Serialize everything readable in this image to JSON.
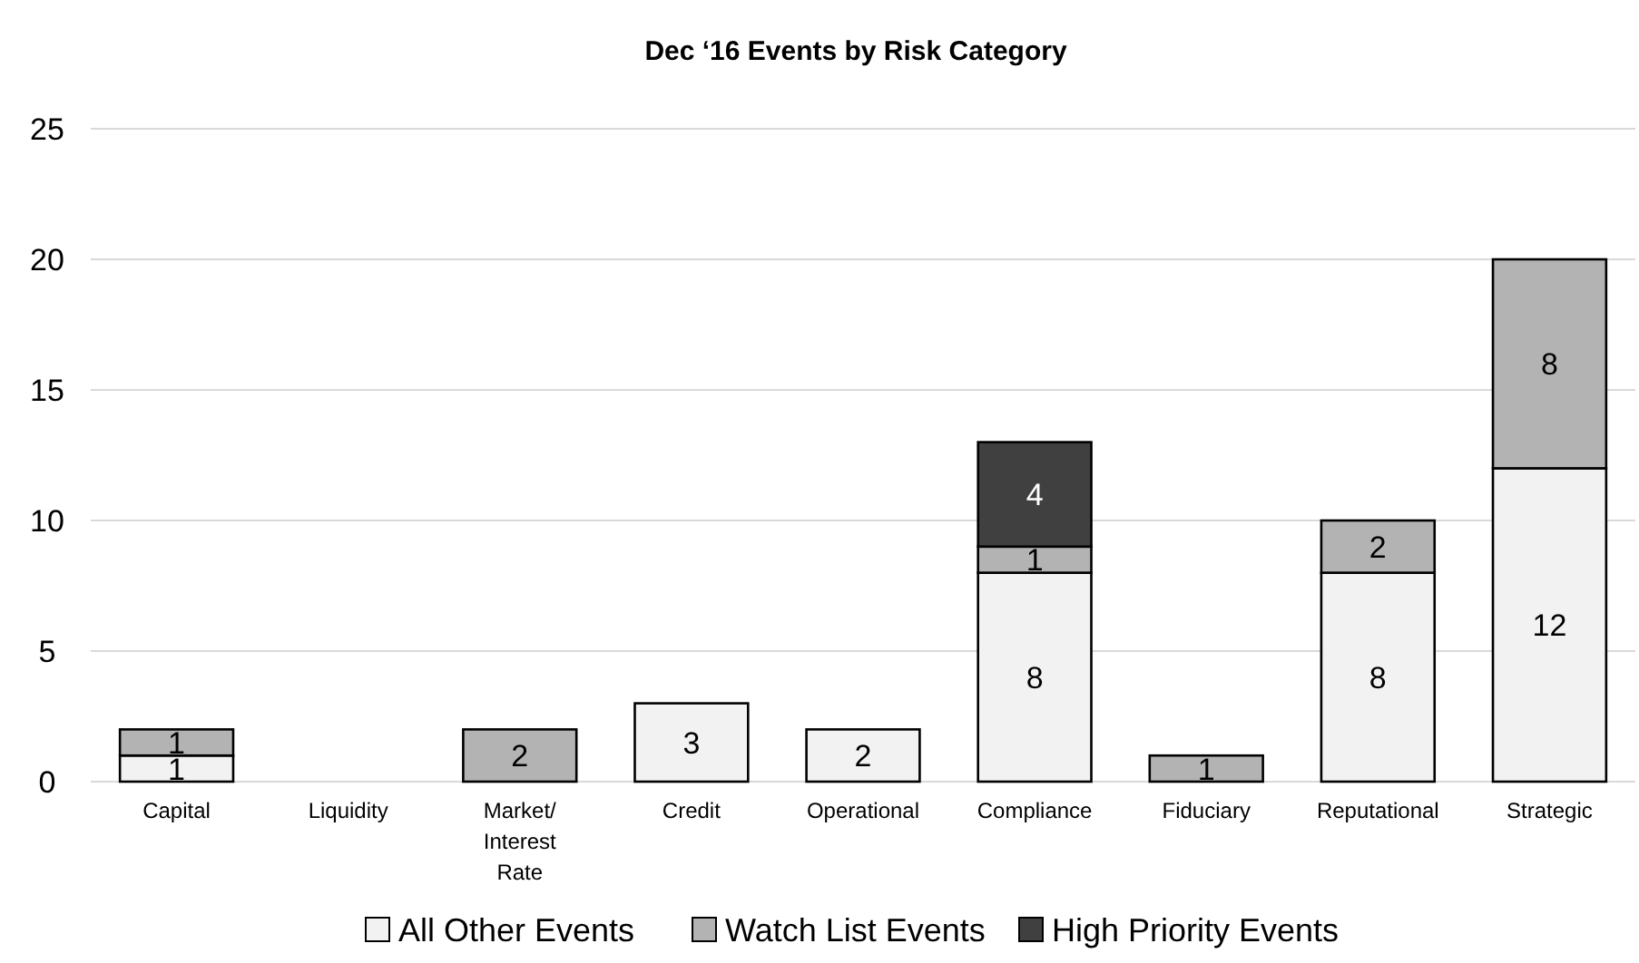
{
  "chart_data": {
    "type": "bar",
    "stacked": true,
    "title": "Dec ‘16 Events by Risk Category",
    "categories": [
      "Capital",
      "Liquidity",
      "Market/ Interest Rate",
      "Credit",
      "Operational",
      "Compliance",
      "Fiduciary",
      "Reputational",
      "Strategic"
    ],
    "series": [
      {
        "name": "All Other Events",
        "color": "#f2f2f2",
        "values": [
          1,
          0,
          0,
          3,
          2,
          8,
          0,
          8,
          12
        ],
        "value_labels": [
          "1",
          null,
          null,
          "3",
          "2",
          "8",
          null,
          "8",
          "12"
        ]
      },
      {
        "name": "Watch List Events",
        "color": "#b3b3b3",
        "values": [
          1,
          0,
          2,
          0,
          0,
          1,
          1,
          2,
          8
        ],
        "value_labels": [
          "1",
          null,
          "2",
          null,
          null,
          "1",
          "1",
          "2",
          "8"
        ]
      },
      {
        "name": "High Priority Events",
        "color": "#404040",
        "values": [
          0,
          0,
          0,
          0,
          0,
          4,
          0,
          0,
          0
        ],
        "value_labels": [
          null,
          null,
          null,
          null,
          null,
          "4",
          null,
          null,
          null
        ]
      }
    ],
    "ylim": [
      0,
      25
    ],
    "yticks": [
      0,
      5,
      10,
      15,
      20,
      25
    ],
    "grid": "y",
    "legend": "bottom"
  }
}
